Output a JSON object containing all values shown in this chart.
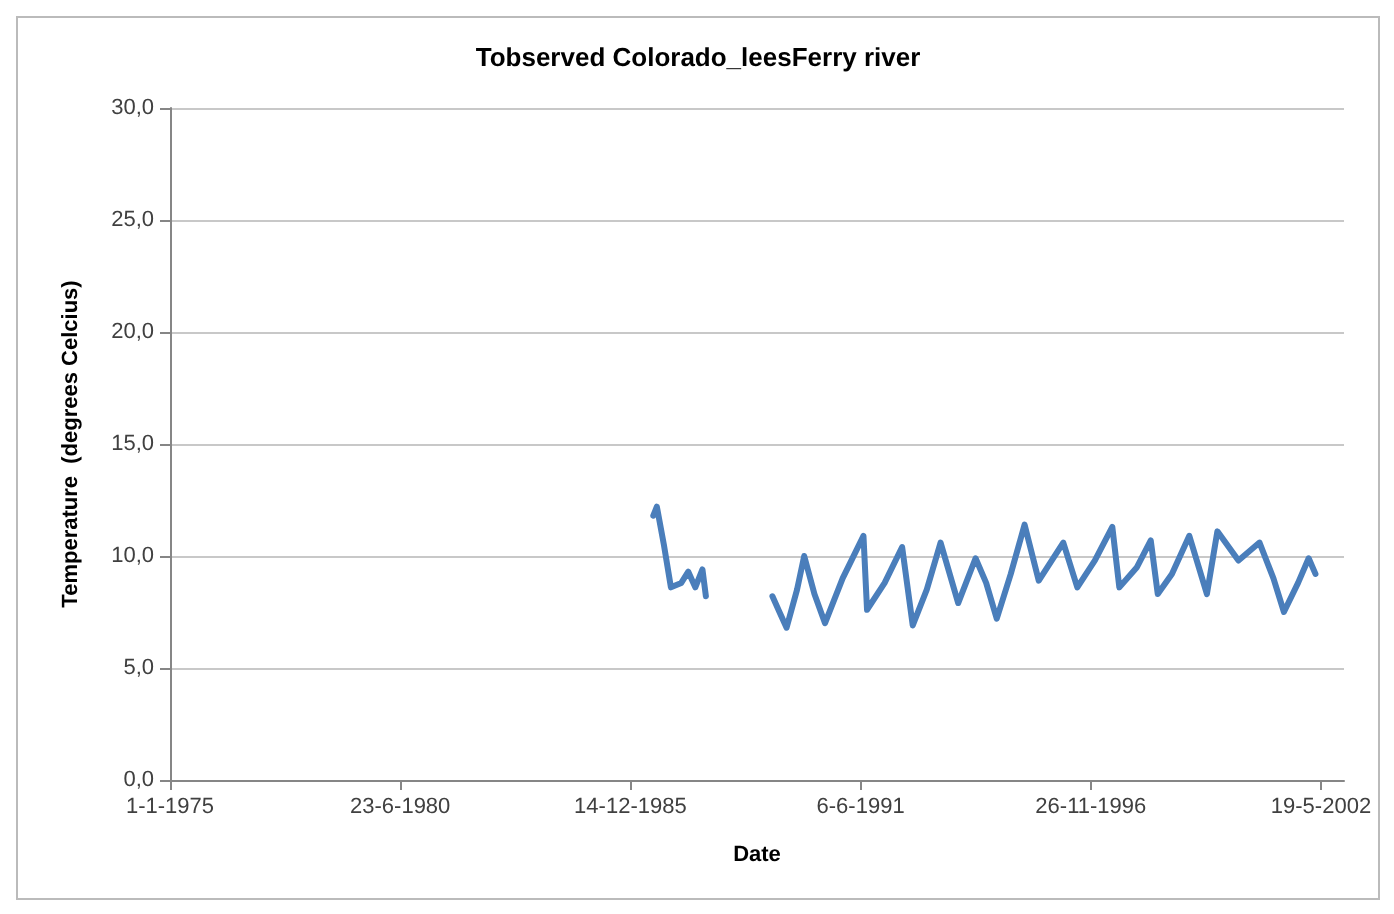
{
  "chart_data": {
    "type": "line",
    "title": "Tobserved Colorado_leesFerry river",
    "xlabel": "Date",
    "ylabel": "Temperature  (degrees Celcius)",
    "x": [
      "1986-07",
      "1986-08",
      "1986-10",
      "1986-12",
      "1987-03",
      "1987-05",
      "1987-07",
      "1987-09",
      "1987-10",
      "1988-06",
      "1989-05",
      "1989-07",
      "1989-09",
      "1989-12",
      "1990-02",
      "1990-05",
      "1990-08",
      "1991-01",
      "1991-07",
      "1991-08",
      "1992-01",
      "1992-06",
      "1992-09",
      "1993-01",
      "1993-05",
      "1993-10",
      "1994-03",
      "1994-06",
      "1994-09",
      "1995-01",
      "1995-05",
      "1995-09",
      "1996-04",
      "1996-08",
      "1997-01",
      "1997-06",
      "1997-08",
      "1998-01",
      "1998-05",
      "1998-07",
      "1998-11",
      "1999-04",
      "1999-09",
      "1999-12",
      "2000-06",
      "2000-12",
      "2001-04",
      "2001-07",
      "2001-11",
      "2002-02",
      "2002-04"
    ],
    "series": [
      {
        "color": "#4a7ebb",
        "values": [
          11.8,
          12.2,
          10.5,
          8.6,
          8.8,
          9.3,
          8.6,
          9.4,
          8.2,
          null,
          8.2,
          7.5,
          6.8,
          8.5,
          10.0,
          8.3,
          7.0,
          9.0,
          10.9,
          7.6,
          8.8,
          10.4,
          6.9,
          8.5,
          10.6,
          7.9,
          9.9,
          8.8,
          7.2,
          9.2,
          11.4,
          8.9,
          10.6,
          8.6,
          9.8,
          11.3,
          8.6,
          9.5,
          10.7,
          8.3,
          9.2,
          10.9,
          8.3,
          11.1,
          9.8,
          10.6,
          9.0,
          7.5,
          8.8,
          9.9,
          9.2
        ]
      }
    ],
    "xlim": [
      "1975-01-01",
      "2002-12-05"
    ],
    "xticks": [
      {
        "value": "1975-01-01",
        "label": "1-1-1975"
      },
      {
        "value": "1980-06-23",
        "label": "23-6-1980"
      },
      {
        "value": "1985-12-14",
        "label": "14-12-1985"
      },
      {
        "value": "1991-06-06",
        "label": "6-6-1991"
      },
      {
        "value": "1996-11-26",
        "label": "26-11-1996"
      },
      {
        "value": "2002-05-19",
        "label": "19-5-2002"
      }
    ],
    "ylim": [
      0,
      30
    ],
    "yticks": [
      {
        "value": 0,
        "label": "0,0"
      },
      {
        "value": 5,
        "label": "5,0"
      },
      {
        "value": 10,
        "label": "10,0"
      },
      {
        "value": 15,
        "label": "15,0"
      },
      {
        "value": 20,
        "label": "20,0"
      },
      {
        "value": 25,
        "label": "25,0"
      },
      {
        "value": 30,
        "label": "30,0"
      }
    ],
    "grid": "y",
    "marker": "none",
    "line_style": "solid"
  }
}
